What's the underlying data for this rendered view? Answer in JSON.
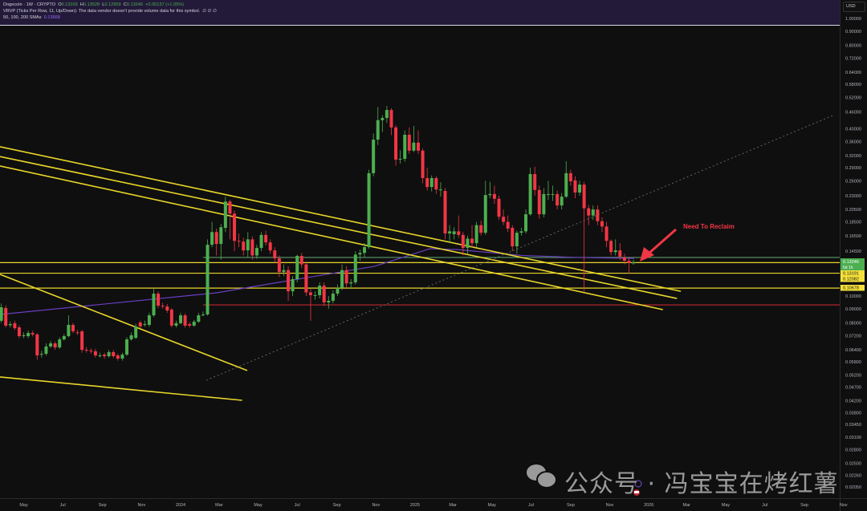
{
  "header": {
    "symbol": "Dogecoin · 1W · CRYPTO",
    "o_label": "O",
    "o": "0.13109",
    "h_label": "H",
    "h": "0.13528",
    "l_label": "L",
    "l": "0.12959",
    "c_label": "C",
    "c": "0.13246",
    "change": "+0.00137 (+1.05%)",
    "vrvp": "VRVP (Ticks Per Row, 11, Up/Down): The data vendor doesn't provide volume data for this symbol.",
    "vrvp_values": "∅ ∅ ∅",
    "sma_label": "50, 100, 200 SMAs",
    "sma_value": "0.13668"
  },
  "currency": "USD",
  "watermark": {
    "icon": "wechat-icon",
    "text": "公众号 · 冯宝宝在烤红薯"
  },
  "colors": {
    "up": "#4caf50",
    "down": "#f23645",
    "trendline": "#e8d52a",
    "sma": "#6a3fc4",
    "support_green": "#5a9a6a",
    "support_red": "#c2272d",
    "annotation": "#f23645",
    "header_bg": "#231a3a",
    "background": "#0f0f0f"
  },
  "chart_data": {
    "type": "candlestick",
    "title": "Dogecoin · 1W · CRYPTO",
    "interval": "1W",
    "y_scale": "log",
    "ylim": [
      0.0195,
      1.05
    ],
    "grid": false,
    "first_week": "2023-03-13",
    "candles": [
      [
        0.0792,
        0.0815,
        0.0735,
        0.0751
      ],
      [
        0.0746,
        0.106,
        0.0735,
        0.0792
      ],
      [
        0.0814,
        0.094,
        0.08,
        0.0911
      ],
      [
        0.0905,
        0.0925,
        0.077,
        0.0782
      ],
      [
        0.0785,
        0.081,
        0.077,
        0.0792
      ],
      [
        0.0798,
        0.0815,
        0.0755,
        0.0766
      ],
      [
        0.0771,
        0.0785,
        0.0705,
        0.0717
      ],
      [
        0.0717,
        0.074,
        0.0705,
        0.0722
      ],
      [
        0.0717,
        0.075,
        0.0705,
        0.0736
      ],
      [
        0.0736,
        0.075,
        0.0715,
        0.0727
      ],
      [
        0.0727,
        0.0735,
        0.059,
        0.0611
      ],
      [
        0.0615,
        0.0635,
        0.06,
        0.0619
      ],
      [
        0.0619,
        0.0675,
        0.061,
        0.0658
      ],
      [
        0.0658,
        0.069,
        0.065,
        0.0675
      ],
      [
        0.0675,
        0.0685,
        0.064,
        0.0653
      ],
      [
        0.0653,
        0.071,
        0.0645,
        0.0698
      ],
      [
        0.0698,
        0.073,
        0.069,
        0.0717
      ],
      [
        0.0717,
        0.0852,
        0.071,
        0.0787
      ],
      [
        0.0787,
        0.08,
        0.0735,
        0.0746
      ],
      [
        0.074,
        0.0755,
        0.0725,
        0.0736
      ],
      [
        0.0746,
        0.0755,
        0.0625,
        0.064
      ],
      [
        0.064,
        0.0655,
        0.0625,
        0.0636
      ],
      [
        0.0636,
        0.0648,
        0.062,
        0.0632
      ],
      [
        0.0632,
        0.0645,
        0.06,
        0.0611
      ],
      [
        0.0611,
        0.0625,
        0.06,
        0.0611
      ],
      [
        0.0615,
        0.0625,
        0.0595,
        0.0607
      ],
      [
        0.0607,
        0.064,
        0.06,
        0.0628
      ],
      [
        0.0628,
        0.0638,
        0.0598,
        0.0607
      ],
      [
        0.0611,
        0.062,
        0.0585,
        0.0595
      ],
      [
        0.0595,
        0.0625,
        0.0585,
        0.0615
      ],
      [
        0.0615,
        0.071,
        0.0608,
        0.0698
      ],
      [
        0.0698,
        0.074,
        0.069,
        0.0722
      ],
      [
        0.0707,
        0.0795,
        0.07,
        0.0777
      ],
      [
        0.0803,
        0.0815,
        0.0765,
        0.0777
      ],
      [
        0.0787,
        0.0815,
        0.0775,
        0.0792
      ],
      [
        0.0787,
        0.087,
        0.0775,
        0.0852
      ],
      [
        0.0852,
        0.106,
        0.084,
        0.102
      ],
      [
        0.102,
        0.104,
        0.0905,
        0.0923
      ],
      [
        0.0923,
        0.0945,
        0.09,
        0.0917
      ],
      [
        0.0917,
        0.0935,
        0.087,
        0.0887
      ],
      [
        0.0893,
        0.0905,
        0.077,
        0.0782
      ],
      [
        0.0782,
        0.0815,
        0.077,
        0.0798
      ],
      [
        0.0798,
        0.087,
        0.079,
        0.0852
      ],
      [
        0.0852,
        0.0865,
        0.077,
        0.0782
      ],
      [
        0.0792,
        0.0805,
        0.077,
        0.0782
      ],
      [
        0.0782,
        0.082,
        0.0775,
        0.0808
      ],
      [
        0.0808,
        0.087,
        0.08,
        0.0852
      ],
      [
        0.0852,
        0.088,
        0.0845,
        0.0858
      ],
      [
        0.0858,
        0.16,
        0.085,
        0.153
      ],
      [
        0.153,
        0.185,
        0.15,
        0.17
      ],
      [
        0.17,
        0.175,
        0.14,
        0.154
      ],
      [
        0.154,
        0.182,
        0.135,
        0.177
      ],
      [
        0.176,
        0.228,
        0.17,
        0.219
      ],
      [
        0.219,
        0.222,
        0.16,
        0.198
      ],
      [
        0.198,
        0.203,
        0.145,
        0.158
      ],
      [
        0.158,
        0.168,
        0.15,
        0.157
      ],
      [
        0.157,
        0.162,
        0.14,
        0.146
      ],
      [
        0.146,
        0.17,
        0.138,
        0.16
      ],
      [
        0.16,
        0.164,
        0.135,
        0.14
      ],
      [
        0.14,
        0.153,
        0.136,
        0.149
      ],
      [
        0.149,
        0.17,
        0.145,
        0.166
      ],
      [
        0.166,
        0.172,
        0.152,
        0.156
      ],
      [
        0.156,
        0.16,
        0.142,
        0.146
      ],
      [
        0.146,
        0.15,
        0.132,
        0.1367
      ],
      [
        0.1367,
        0.14,
        0.117,
        0.122
      ],
      [
        0.122,
        0.13,
        0.118,
        0.124
      ],
      [
        0.124,
        0.128,
        0.096,
        0.104
      ],
      [
        0.104,
        0.118,
        0.1,
        0.115
      ],
      [
        0.115,
        0.141,
        0.112,
        0.1395
      ],
      [
        0.1395,
        0.143,
        0.126,
        0.13
      ],
      [
        0.13,
        0.133,
        0.1,
        0.103
      ],
      [
        0.103,
        0.106,
        0.0814,
        0.1007
      ],
      [
        0.1007,
        0.104,
        0.097,
        0.1007
      ],
      [
        0.1007,
        0.112,
        0.098,
        0.109
      ],
      [
        0.109,
        0.112,
        0.092,
        0.0948
      ],
      [
        0.0948,
        0.1,
        0.09,
        0.0961
      ],
      [
        0.0961,
        0.105,
        0.094,
        0.102
      ],
      [
        0.102,
        0.11,
        0.1,
        0.107
      ],
      [
        0.107,
        0.13,
        0.105,
        0.124
      ],
      [
        0.124,
        0.128,
        0.107,
        0.111
      ],
      [
        0.111,
        0.115,
        0.106,
        0.112
      ],
      [
        0.112,
        0.145,
        0.11,
        0.141
      ],
      [
        0.141,
        0.147,
        0.134,
        0.143
      ],
      [
        0.143,
        0.155,
        0.138,
        0.15
      ],
      [
        0.15,
        0.285,
        0.148,
        0.277
      ],
      [
        0.277,
        0.385,
        0.27,
        0.366
      ],
      [
        0.366,
        0.48,
        0.35,
        0.43
      ],
      [
        0.43,
        0.448,
        0.39,
        0.438
      ],
      [
        0.438,
        0.484,
        0.42,
        0.468
      ],
      [
        0.468,
        0.475,
        0.38,
        0.405
      ],
      [
        0.405,
        0.412,
        0.295,
        0.31
      ],
      [
        0.31,
        0.335,
        0.3,
        0.312
      ],
      [
        0.312,
        0.395,
        0.305,
        0.381
      ],
      [
        0.381,
        0.405,
        0.325,
        0.334
      ],
      [
        0.334,
        0.41,
        0.33,
        0.357
      ],
      [
        0.357,
        0.395,
        0.325,
        0.334
      ],
      [
        0.334,
        0.34,
        0.255,
        0.266
      ],
      [
        0.266,
        0.29,
        0.24,
        0.247
      ],
      [
        0.247,
        0.272,
        0.238,
        0.266
      ],
      [
        0.266,
        0.27,
        0.233,
        0.242
      ],
      [
        0.242,
        0.257,
        0.228,
        0.242
      ],
      [
        0.239,
        0.245,
        0.16,
        0.168
      ],
      [
        0.168,
        0.18,
        0.155,
        0.171
      ],
      [
        0.167,
        0.177,
        0.16,
        0.171
      ],
      [
        0.171,
        0.195,
        0.162,
        0.166
      ],
      [
        0.166,
        0.17,
        0.14,
        0.149
      ],
      [
        0.149,
        0.165,
        0.142,
        0.161
      ],
      [
        0.161,
        0.18,
        0.15,
        0.155
      ],
      [
        0.155,
        0.185,
        0.15,
        0.18
      ],
      [
        0.18,
        0.187,
        0.165,
        0.169
      ],
      [
        0.169,
        0.26,
        0.166,
        0.231
      ],
      [
        0.231,
        0.258,
        0.225,
        0.233
      ],
      [
        0.233,
        0.25,
        0.215,
        0.224
      ],
      [
        0.224,
        0.23,
        0.188,
        0.193
      ],
      [
        0.193,
        0.205,
        0.18,
        0.185
      ],
      [
        0.185,
        0.195,
        0.17,
        0.175
      ],
      [
        0.176,
        0.18,
        0.145,
        0.151
      ],
      [
        0.151,
        0.172,
        0.142,
        0.169
      ],
      [
        0.169,
        0.176,
        0.165,
        0.171
      ],
      [
        0.171,
        0.205,
        0.168,
        0.197
      ],
      [
        0.197,
        0.29,
        0.195,
        0.275
      ],
      [
        0.275,
        0.292,
        0.23,
        0.241
      ],
      [
        0.241,
        0.25,
        0.19,
        0.197
      ],
      [
        0.197,
        0.245,
        0.192,
        0.233
      ],
      [
        0.233,
        0.26,
        0.222,
        0.233
      ],
      [
        0.233,
        0.25,
        0.22,
        0.233
      ],
      [
        0.233,
        0.24,
        0.205,
        0.212
      ],
      [
        0.212,
        0.235,
        0.205,
        0.228
      ],
      [
        0.228,
        0.306,
        0.225,
        0.277
      ],
      [
        0.277,
        0.285,
        0.25,
        0.259
      ],
      [
        0.261,
        0.27,
        0.225,
        0.236
      ],
      [
        0.236,
        0.26,
        0.23,
        0.252
      ],
      [
        0.252,
        0.258,
        0.104,
        0.207
      ],
      [
        0.207,
        0.213,
        0.18,
        0.195
      ],
      [
        0.195,
        0.212,
        0.188,
        0.205
      ],
      [
        0.205,
        0.212,
        0.18,
        0.186
      ],
      [
        0.186,
        0.192,
        0.17,
        0.178
      ],
      [
        0.178,
        0.185,
        0.15,
        0.158
      ],
      [
        0.158,
        0.16,
        0.14,
        0.144
      ],
      [
        0.144,
        0.16,
        0.14,
        0.146
      ],
      [
        0.146,
        0.155,
        0.135,
        0.1386
      ],
      [
        0.1377,
        0.142,
        0.13,
        0.134
      ],
      [
        0.134,
        0.138,
        0.1205,
        0.1314
      ],
      [
        0.13109,
        0.13528,
        0.12959,
        0.13246
      ]
    ],
    "sma200": [
      [
        "2023-03-25",
        0.0858
      ],
      [
        "2024-02-26",
        0.1027
      ],
      [
        "2024-10-30",
        0.128
      ],
      [
        "2025-01-24",
        0.148
      ],
      [
        "2025-03-08",
        0.147
      ],
      [
        "2025-06-17",
        0.14
      ],
      [
        "2025-09-12",
        0.1377
      ],
      [
        "2025-12-09",
        0.1367
      ]
    ],
    "trendlines": [
      {
        "from": [
          "2023-03-25",
          0.345
        ],
        "to": [
          "2026-02-20",
          0.104
        ]
      },
      {
        "from": [
          "2023-03-25",
          0.318
        ],
        "to": [
          "2026-02-14",
          0.098
        ]
      },
      {
        "from": [
          "2023-03-25",
          0.294
        ],
        "to": [
          "2026-01-23",
          0.0893
        ]
      },
      {
        "from": [
          "2023-03-25",
          0.1197
        ],
        "to": [
          "2024-04-14",
          0.0539
        ]
      },
      {
        "from": [
          "2023-03-25",
          0.0511
        ],
        "to": [
          "2024-04-06",
          0.0421
        ]
      }
    ],
    "dotted_trendline": {
      "from": [
        "2024-02-10",
        0.0497
      ],
      "to": [
        "2026-10-18",
        0.45
      ]
    },
    "horizontal_levels": [
      {
        "price": 0.13191,
        "color": "yellow",
        "label": "0.13191"
      },
      {
        "price": 0.12082,
        "color": "yellow",
        "label": "0.12082"
      },
      {
        "price": 0.10678,
        "color": "yellow",
        "label": "0.10678"
      },
      {
        "price": 0.1377,
        "color": "green",
        "from": "2024-02-05"
      },
      {
        "price": 0.0929,
        "color": "red",
        "from": "2024-02-05"
      }
    ],
    "last_price": {
      "value": "0.13246",
      "countdown": "6d 1h"
    },
    "annotation": {
      "text": "Need To Reclaim"
    },
    "y_ticks": [
      "1.00000",
      "0.90000",
      "0.80000",
      "0.72000",
      "0.64000",
      "0.58000",
      "0.52000",
      "0.46000",
      "0.40000",
      "0.36000",
      "0.32000",
      "0.29000",
      "0.26000",
      "0.23000",
      "0.20500",
      "0.18500",
      "0.16500",
      "0.14500",
      "0.10000",
      "0.09000",
      "0.08000",
      "0.07200",
      "0.06400",
      "0.05800",
      "0.05200",
      "0.04700",
      "0.04200",
      "0.03800",
      "0.03450",
      "0.03100",
      "0.02800",
      "0.02500",
      "0.02260",
      "0.02050"
    ],
    "x_ticks": [
      [
        "2023-05-01",
        "May"
      ],
      [
        "2023-07-01",
        "Jul"
      ],
      [
        "2023-09-01",
        "Sep"
      ],
      [
        "2023-11-01",
        "Nov"
      ],
      [
        "2024-01-01",
        "2024"
      ],
      [
        "2024-03-01",
        "Mar"
      ],
      [
        "2024-05-01",
        "May"
      ],
      [
        "2024-07-01",
        "Jul"
      ],
      [
        "2024-09-01",
        "Sep"
      ],
      [
        "2024-11-01",
        "Nov"
      ],
      [
        "2025-01-01",
        "2025"
      ],
      [
        "2025-03-01",
        "Mar"
      ],
      [
        "2025-05-01",
        "May"
      ],
      [
        "2025-07-01",
        "Jul"
      ],
      [
        "2025-09-01",
        "Sep"
      ],
      [
        "2025-11-01",
        "Nov"
      ],
      [
        "2026-01-01",
        "2026"
      ],
      [
        "2026-03-01",
        "Mar"
      ],
      [
        "2026-05-01",
        "May"
      ],
      [
        "2026-07-01",
        "Jul"
      ],
      [
        "2026-09-01",
        "Sep"
      ],
      [
        "2026-11-01",
        "Nov"
      ]
    ],
    "markers": [
      {
        "date": "2025-12-08",
        "icon": "dividend-icon"
      },
      {
        "date": "2025-12-08",
        "icon": "us-flag-event-icon"
      }
    ]
  }
}
